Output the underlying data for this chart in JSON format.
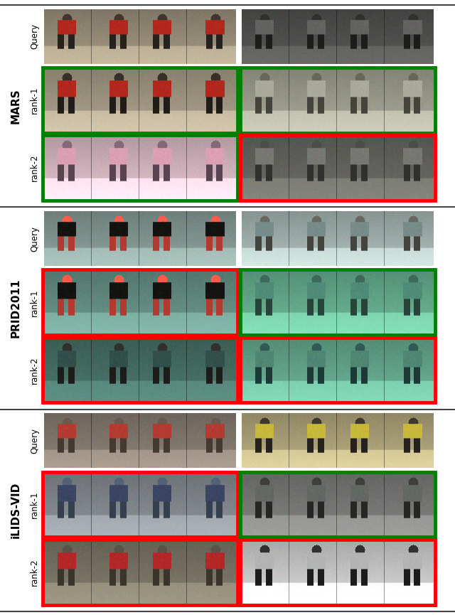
{
  "bg_color": "#ffffff",
  "datasets": [
    "MARS",
    "PRID2011",
    "iLIDS-VID"
  ],
  "row_labels": [
    "Query",
    "rank-1",
    "rank-2"
  ],
  "label_fontsize": 8.5,
  "dataset_label_fontsize": 11,
  "border_lw": 3.5,
  "section_divider_color": "#444444",
  "outer_border_color": "#444444",
  "border_colors": {
    "MARS": {
      "left": [
        "none",
        "green",
        "green"
      ],
      "right": [
        "none",
        "green",
        "red"
      ]
    },
    "PRID2011": {
      "left": [
        "none",
        "red",
        "red"
      ],
      "right": [
        "none",
        "green",
        "red"
      ]
    },
    "iLIDS-VID": {
      "left": [
        "none",
        "red",
        "red"
      ],
      "right": [
        "none",
        "green",
        "red"
      ]
    }
  },
  "panels": {
    "MARS": {
      "left": {
        "query": {
          "bg": [
            150,
            140,
            120
          ],
          "fg": [
            30,
            25,
            20
          ],
          "accent": [
            180,
            40,
            30
          ]
        },
        "rank1": {
          "bg": [
            160,
            150,
            130
          ],
          "fg": [
            25,
            20,
            15
          ],
          "accent": [
            180,
            40,
            30
          ]
        },
        "rank2": {
          "bg": [
            210,
            180,
            190
          ],
          "fg": [
            80,
            60,
            70
          ],
          "accent": [
            220,
            160,
            180
          ]
        }
      },
      "right": {
        "query": {
          "bg": [
            80,
            80,
            78
          ],
          "fg": [
            20,
            20,
            18
          ],
          "accent": [
            100,
            100,
            98
          ]
        },
        "rank1": {
          "bg": [
            155,
            155,
            140
          ],
          "fg": [
            60,
            60,
            50
          ],
          "accent": [
            170,
            170,
            155
          ]
        },
        "rank2": {
          "bg": [
            100,
            100,
            95
          ],
          "fg": [
            40,
            40,
            38
          ],
          "accent": [
            120,
            120,
            115
          ]
        }
      }
    },
    "PRID2011": {
      "left": {
        "query": {
          "bg": [
            130,
            150,
            145
          ],
          "fg": [
            170,
            50,
            40
          ],
          "accent": [
            20,
            20,
            18
          ]
        },
        "rank1": {
          "bg": [
            100,
            140,
            130
          ],
          "fg": [
            170,
            50,
            40
          ],
          "accent": [
            20,
            20,
            18
          ]
        },
        "rank2": {
          "bg": [
            70,
            110,
            100
          ],
          "fg": [
            20,
            20,
            18
          ],
          "accent": [
            50,
            80,
            75
          ]
        }
      },
      "right": {
        "query": {
          "bg": [
            160,
            175,
            172
          ],
          "fg": [
            60,
            60,
            55
          ],
          "accent": [
            120,
            140,
            138
          ]
        },
        "rank1": {
          "bg": [
            100,
            170,
            140
          ],
          "fg": [
            30,
            60,
            50
          ],
          "accent": [
            80,
            140,
            120
          ]
        },
        "rank2": {
          "bg": [
            100,
            165,
            140
          ],
          "fg": [
            20,
            50,
            45
          ],
          "accent": [
            80,
            135,
            115
          ]
        }
      }
    },
    "iLIDS-VID": {
      "left": {
        "query": {
          "bg": [
            130,
            120,
            110
          ],
          "fg": [
            60,
            50,
            40
          ],
          "accent": [
            180,
            60,
            50
          ]
        },
        "rank1": {
          "bg": [
            130,
            135,
            140
          ],
          "fg": [
            45,
            55,
            70
          ],
          "accent": [
            60,
            70,
            100
          ]
        },
        "rank2": {
          "bg": [
            120,
            115,
            100
          ],
          "fg": [
            50,
            45,
            35
          ],
          "accent": [
            180,
            40,
            40
          ]
        }
      },
      "right": {
        "query": {
          "bg": [
            170,
            160,
            120
          ],
          "fg": [
            30,
            25,
            20
          ],
          "accent": [
            200,
            185,
            60
          ]
        },
        "rank1": {
          "bg": [
            120,
            120,
            118
          ],
          "fg": [
            30,
            30,
            28
          ],
          "accent": [
            100,
            105,
            100
          ]
        },
        "rank2": {
          "bg": [
            200,
            200,
            200
          ],
          "fg": [
            20,
            20,
            20
          ],
          "accent": [
            180,
            180,
            180
          ]
        }
      }
    }
  }
}
